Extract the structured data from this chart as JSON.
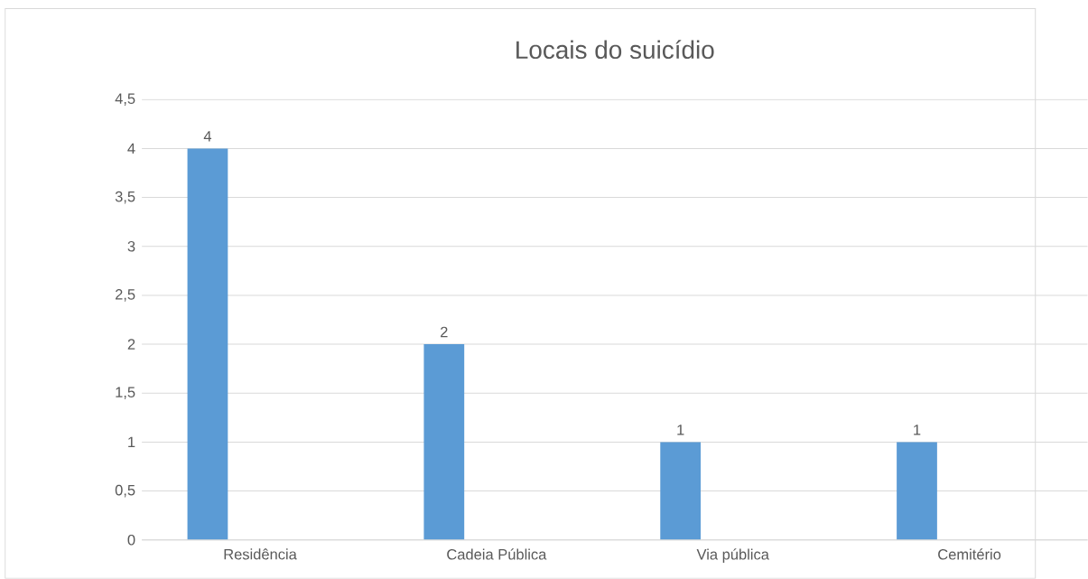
{
  "chart_data": {
    "type": "bar",
    "title": "Locais do suicídio",
    "categories": [
      "Residência",
      "Cadeia Pública",
      "Via pública",
      "Cemitério"
    ],
    "values": [
      4,
      2,
      1,
      1
    ],
    "color": "#5b9bd5",
    "ylim": [
      0,
      4.5
    ],
    "yticks": [
      0,
      {
        "value": 0.5,
        "label": "0,5"
      },
      1,
      {
        "value": 1.5,
        "label": "1,5"
      },
      2,
      {
        "value": 2.5,
        "label": "2,5"
      },
      3,
      {
        "value": 3.5,
        "label": "3,5"
      },
      4,
      {
        "value": 4.5,
        "label": "4,5"
      }
    ],
    "grid": "y",
    "data_labels": true
  }
}
